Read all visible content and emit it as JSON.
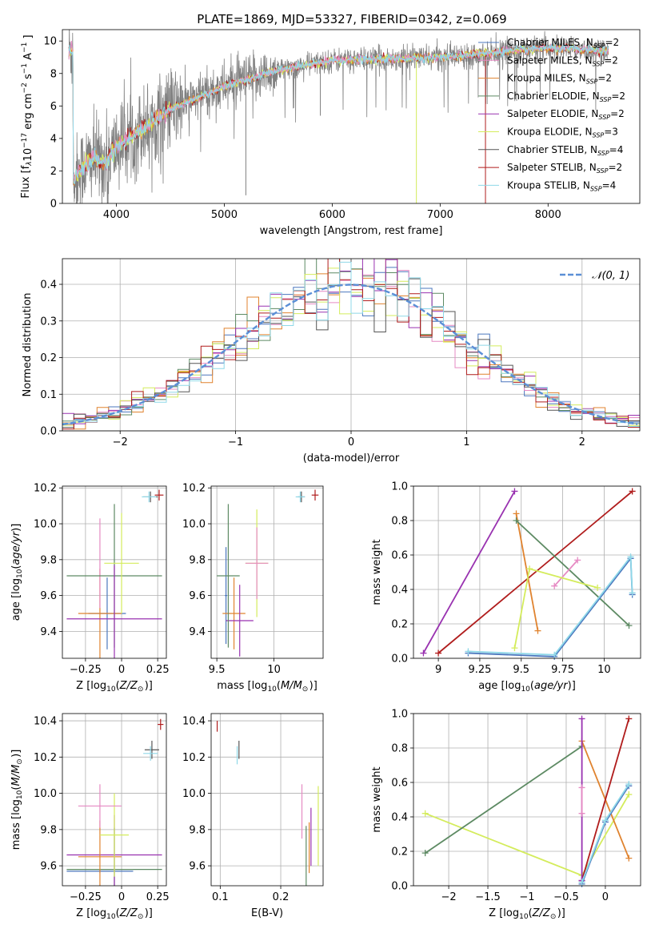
{
  "figure": {
    "title": "PLATE=1869, MJD=53327, FIBERID=0342, z=0.069"
  },
  "legend_entries": [
    {
      "name": "Chabrier MILES, N_SSP=2",
      "color": "#4b77be"
    },
    {
      "name": "Salpeter MILES, N_SSP=2",
      "color": "#e68ac3"
    },
    {
      "name": "Kroupa MILES, N_SSP=2",
      "color": "#e0832f"
    },
    {
      "name": "Chabrier ELODIE, N_SSP=2",
      "color": "#5d8a63"
    },
    {
      "name": "Salpeter ELODIE, N_SSP=2",
      "color": "#9932b0"
    },
    {
      "name": "Kroupa ELODIE, N_SSP=3",
      "color": "#d4ec5c"
    },
    {
      "name": "Chabrier STELIB, N_SSP=4",
      "color": "#555555"
    },
    {
      "name": "Salpeter STELIB, N_SSP=2",
      "color": "#b01c1c"
    },
    {
      "name": "Kroupa STELIB, N_SSP=4",
      "color": "#8fd8e8"
    }
  ],
  "chart_data": [
    {
      "id": "spectrum",
      "type": "line",
      "title": "PLATE=1869, MJD=53327, FIBERID=0342, z=0.069",
      "xlabel": "wavelength [Angstrom, rest frame]",
      "ylabel": "Flux [f_λ10^-17 erg cm^-2 s^-1 A^-1]",
      "xlim": [
        3500,
        8850
      ],
      "ylim": [
        0,
        10.7
      ],
      "xticks": [
        4000,
        5000,
        6000,
        7000,
        8000
      ],
      "yticks": [
        0,
        2,
        4,
        6,
        8,
        10
      ],
      "grid": false,
      "legend": "top-right",
      "model_curve": {
        "x": [
          3600,
          3700,
          3800,
          3900,
          4000,
          4200,
          4500,
          5000,
          5500,
          6000,
          6500,
          7000,
          7500,
          8000,
          8500
        ],
        "y": [
          1.5,
          2.3,
          2.8,
          2.5,
          3.5,
          4.4,
          5.8,
          7.2,
          8.2,
          8.8,
          8.9,
          9.0,
          9.3,
          9.6,
          9.4
        ]
      }
    },
    {
      "id": "residuals",
      "type": "line",
      "xlabel": "(data-model)/error",
      "ylabel": "Normed distribution",
      "xlim": [
        -2.5,
        2.5
      ],
      "ylim": [
        0,
        0.47
      ],
      "xticks": [
        -2,
        -1,
        0,
        1,
        2
      ],
      "yticks": [
        0.0,
        0.1,
        0.2,
        0.3,
        0.4
      ],
      "grid": true,
      "legend": "top-right",
      "legend_label": "𝒩(0, 1)",
      "gaussian": {
        "mean": 0,
        "sigma": 1
      }
    },
    {
      "id": "age_vs_Z",
      "type": "scatter",
      "xlabel": "Z [log10(Z/Z_sun)]",
      "ylabel": "age [log10(age/yr)]",
      "xlim": [
        -0.41,
        0.31
      ],
      "ylim": [
        9.25,
        10.21
      ],
      "xticks": [
        -0.25,
        0.0,
        0.25
      ],
      "yticks": [
        9.4,
        9.6,
        9.8,
        10.0,
        10.2
      ],
      "grid": true,
      "points": [
        {
          "series": 0,
          "x": -0.1,
          "y": 9.5,
          "xerr": 0.13,
          "yerr": 0.2
        },
        {
          "series": 2,
          "x": -0.15,
          "y": 9.5,
          "xerr": 0.15,
          "yerr": 0.25
        },
        {
          "series": 1,
          "x": -0.15,
          "y": 9.78,
          "xerr": 0.0,
          "yerr": 0.25
        },
        {
          "series": 3,
          "x": -0.05,
          "y": 9.71,
          "xerr": 0.33,
          "yerr": 0.4
        },
        {
          "series": 4,
          "x": -0.05,
          "y": 9.47,
          "xerr": 0.33,
          "yerr": 0.3
        },
        {
          "series": 5,
          "x": 0.0,
          "y": 9.78,
          "xerr": 0.12,
          "yerr": 0.28
        },
        {
          "series": 6,
          "x": 0.2,
          "y": 10.15,
          "xerr": 0.05,
          "yerr": 0.03
        },
        {
          "series": 7,
          "x": 0.26,
          "y": 10.16,
          "xerr": 0.03,
          "yerr": 0.03
        },
        {
          "series": 8,
          "x": 0.19,
          "y": 10.15,
          "xerr": 0.05,
          "yerr": 0.03
        }
      ]
    },
    {
      "id": "age_vs_mass",
      "type": "scatter",
      "xlabel": "mass [log10(M/M_sun)]",
      "xlim": [
        9.45,
        10.43
      ],
      "ylim": [
        9.25,
        10.21
      ],
      "xticks": [
        9.5,
        10.0
      ],
      "yticks": [
        9.4,
        9.6,
        9.8,
        10.0,
        10.2
      ],
      "grid": true,
      "points": [
        {
          "series": 0,
          "x": 9.58,
          "y": 9.6,
          "xerr": 0.01,
          "yerr": 0.27
        },
        {
          "series": 2,
          "x": 9.65,
          "y": 9.5,
          "xerr": 0.1,
          "yerr": 0.2
        },
        {
          "series": 4,
          "x": 9.7,
          "y": 9.46,
          "xerr": 0.12,
          "yerr": 0.2
        },
        {
          "series": 3,
          "x": 9.6,
          "y": 9.71,
          "xerr": 0.1,
          "yerr": 0.4
        },
        {
          "series": 5,
          "x": 9.85,
          "y": 9.78,
          "xerr": 0.1,
          "yerr": 0.3
        },
        {
          "series": 1,
          "x": 9.85,
          "y": 9.78,
          "xerr": 0.1,
          "yerr": 0.2
        },
        {
          "series": 6,
          "x": 10.24,
          "y": 10.15,
          "xerr": 0.03,
          "yerr": 0.03
        },
        {
          "series": 7,
          "x": 10.36,
          "y": 10.16,
          "xerr": 0.03,
          "yerr": 0.03
        },
        {
          "series": 8,
          "x": 10.23,
          "y": 10.15,
          "xerr": 0.04,
          "yerr": 0.03
        }
      ]
    },
    {
      "id": "weight_vs_age",
      "type": "line",
      "xlabel": "age [log10(age/yr)]",
      "ylabel": "mass weight",
      "xlim": [
        8.85,
        10.22
      ],
      "ylim": [
        0,
        1
      ],
      "xticks": [
        9.0,
        9.25,
        9.5,
        9.75,
        10.0
      ],
      "yticks": [
        0.0,
        0.2,
        0.4,
        0.6,
        0.8,
        1.0
      ],
      "grid": true,
      "series": [
        {
          "series": 4,
          "x": [
            8.91,
            9.46
          ],
          "y": [
            0.03,
            0.97
          ]
        },
        {
          "series": 7,
          "x": [
            9.0,
            10.17
          ],
          "y": [
            0.03,
            0.97
          ]
        },
        {
          "series": 2,
          "x": [
            9.47,
            9.6
          ],
          "y": [
            0.84,
            0.16
          ]
        },
        {
          "series": 3,
          "x": [
            9.47,
            10.15
          ],
          "y": [
            0.8,
            0.19
          ]
        },
        {
          "series": 1,
          "x": [
            9.7,
            9.84
          ],
          "y": [
            0.42,
            0.57
          ]
        },
        {
          "series": 5,
          "x": [
            9.46,
            9.55,
            9.96
          ],
          "y": [
            0.06,
            0.52,
            0.41
          ]
        },
        {
          "series": 0,
          "x": [
            9.18,
            9.7,
            10.16,
            10.17
          ],
          "y": [
            0.03,
            0.01,
            0.58,
            0.37
          ]
        },
        {
          "series": 8,
          "x": [
            9.18,
            9.7,
            10.16,
            10.17
          ],
          "y": [
            0.04,
            0.02,
            0.59,
            0.38
          ]
        }
      ]
    },
    {
      "id": "mass_vs_Z",
      "type": "scatter",
      "xlabel": "Z [log10(Z/Z_sun)]",
      "ylabel": "mass [log10(M/M_sun)]",
      "xlim": [
        -0.41,
        0.31
      ],
      "ylim": [
        9.49,
        10.44
      ],
      "xticks": [
        -0.25,
        0.0,
        0.25
      ],
      "yticks": [
        9.6,
        9.8,
        10.0,
        10.2,
        10.4
      ],
      "grid": true,
      "points": [
        {
          "series": 0,
          "x": -0.15,
          "y": 9.57,
          "xerr": 0.23,
          "yerr": 0.01
        },
        {
          "series": 3,
          "x": -0.05,
          "y": 9.58,
          "xerr": 0.33,
          "yerr": 0.23
        },
        {
          "series": 4,
          "x": -0.05,
          "y": 9.66,
          "xerr": 0.33,
          "yerr": 0.22
        },
        {
          "series": 2,
          "x": -0.15,
          "y": 9.65,
          "xerr": 0.15,
          "yerr": 0.2
        },
        {
          "series": 5,
          "x": -0.05,
          "y": 9.77,
          "xerr": 0.1,
          "yerr": 0.23
        },
        {
          "series": 1,
          "x": -0.15,
          "y": 9.93,
          "xerr": 0.15,
          "yerr": 0.12
        },
        {
          "series": 6,
          "x": 0.21,
          "y": 10.24,
          "xerr": 0.05,
          "yerr": 0.05
        },
        {
          "series": 7,
          "x": 0.27,
          "y": 10.38,
          "xerr": 0.02,
          "yerr": 0.03
        },
        {
          "series": 8,
          "x": 0.2,
          "y": 10.22,
          "xerr": 0.05,
          "yerr": 0.04
        }
      ]
    },
    {
      "id": "mass_vs_ebv",
      "type": "scatter",
      "xlabel": "E(B-V)",
      "xlim": [
        0.085,
        0.27
      ],
      "ylim": [
        9.49,
        10.44
      ],
      "xticks": [
        0.1,
        0.2
      ],
      "yticks": [
        9.6,
        9.8,
        10.0,
        10.2,
        10.4
      ],
      "grid": true,
      "points": [
        {
          "series": 7,
          "x": 0.095,
          "y": 10.37,
          "xerr": 0,
          "yerr": 0.03
        },
        {
          "series": 6,
          "x": 0.131,
          "y": 10.24,
          "xerr": 0,
          "yerr": 0.05
        },
        {
          "series": 8,
          "x": 0.128,
          "y": 10.21,
          "xerr": 0,
          "yerr": 0.05
        },
        {
          "series": 1,
          "x": 0.235,
          "y": 9.9,
          "xerr": 0,
          "yerr": 0.15
        },
        {
          "series": 3,
          "x": 0.242,
          "y": 9.65,
          "xerr": 0,
          "yerr": 0.17
        },
        {
          "series": 4,
          "x": 0.25,
          "y": 9.76,
          "xerr": 0,
          "yerr": 0.16
        },
        {
          "series": 2,
          "x": 0.247,
          "y": 9.7,
          "xerr": 0,
          "yerr": 0.14
        },
        {
          "series": 5,
          "x": 0.262,
          "y": 9.82,
          "xerr": 0,
          "yerr": 0.22
        }
      ]
    },
    {
      "id": "weight_vs_Z",
      "type": "line",
      "xlabel": "Z [log10(Z/Z_sun)]",
      "ylabel": "mass weight",
      "xlim": [
        -2.45,
        0.45
      ],
      "ylim": [
        0,
        1
      ],
      "xticks": [
        -2.0,
        -1.5,
        -1.0,
        -0.5,
        0.0
      ],
      "yticks": [
        0.0,
        0.2,
        0.4,
        0.6,
        0.8,
        1.0
      ],
      "grid": true,
      "series": [
        {
          "series": 5,
          "x": [
            -2.3,
            -0.3,
            0.3
          ],
          "y": [
            0.42,
            0.06,
            0.53
          ]
        },
        {
          "series": 3,
          "x": [
            -2.3,
            -0.3
          ],
          "y": [
            0.19,
            0.81
          ]
        },
        {
          "series": 2,
          "x": [
            -0.3,
            0.3
          ],
          "y": [
            0.84,
            0.16
          ]
        },
        {
          "series": 7,
          "x": [
            -0.3,
            0.3
          ],
          "y": [
            0.03,
            0.97
          ]
        },
        {
          "series": 4,
          "x": [
            -0.3,
            -0.3
          ],
          "y": [
            0.03,
            0.97
          ]
        },
        {
          "series": 1,
          "x": [
            -0.3,
            -0.3
          ],
          "y": [
            0.42,
            0.57
          ]
        },
        {
          "series": 0,
          "x": [
            -0.3,
            0.0,
            0.3
          ],
          "y": [
            0.01,
            0.37,
            0.58
          ]
        },
        {
          "series": 8,
          "x": [
            -0.3,
            0.0,
            0.3
          ],
          "y": [
            0.02,
            0.38,
            0.59
          ]
        }
      ]
    }
  ]
}
